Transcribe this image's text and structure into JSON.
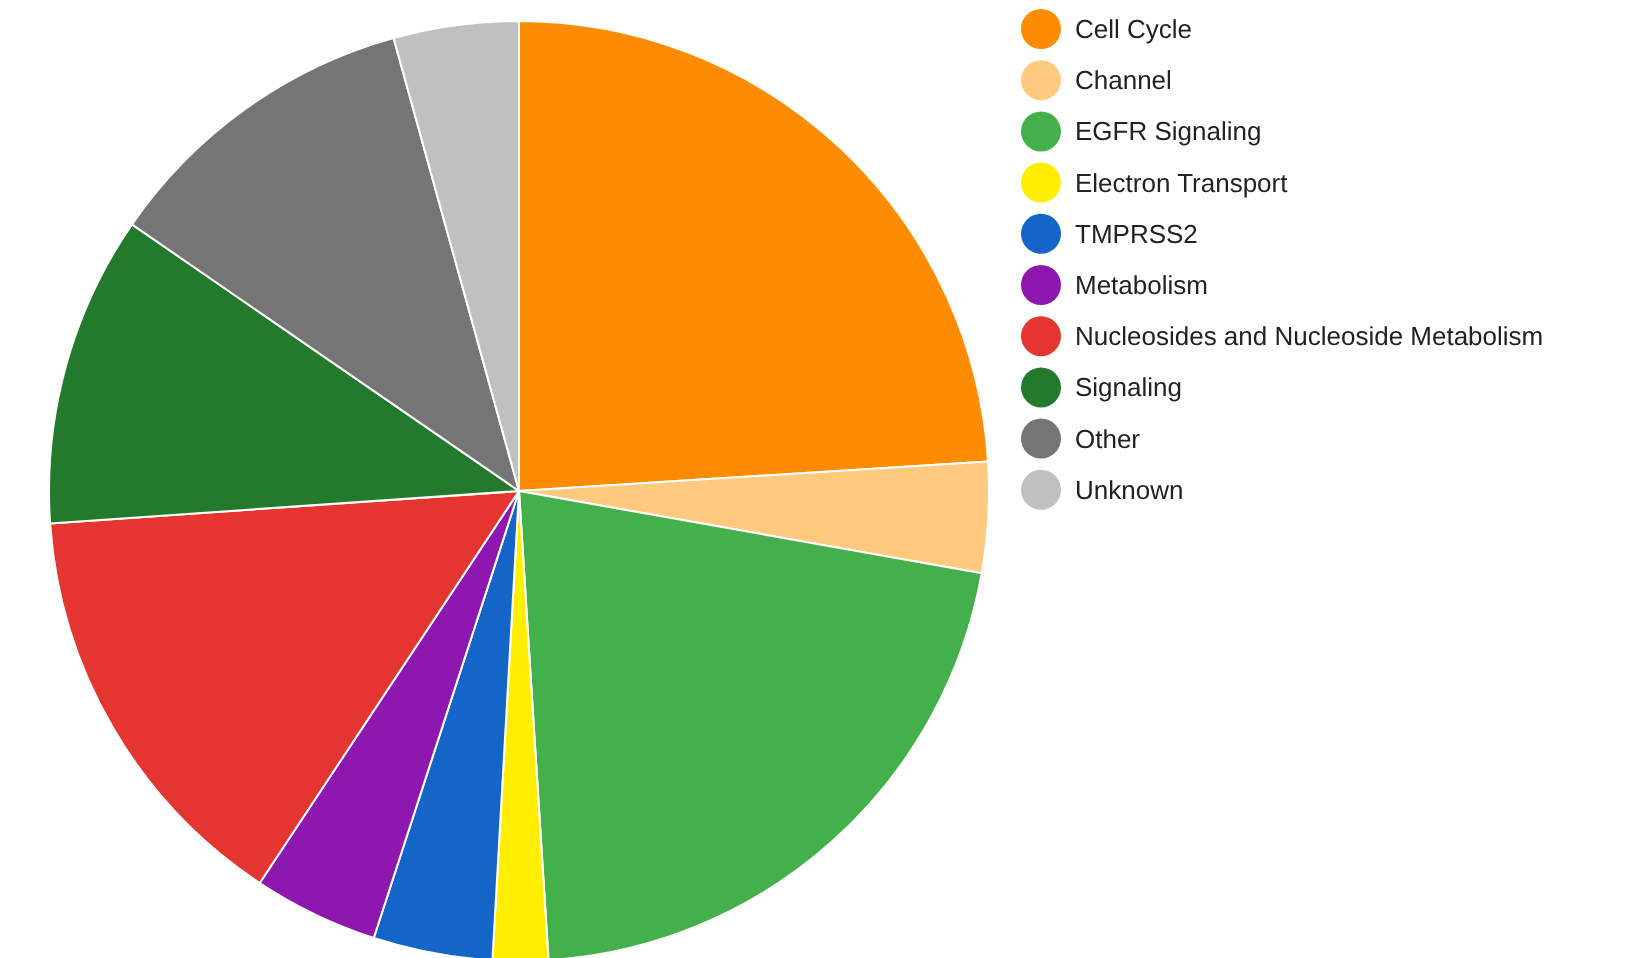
{
  "chart_data": {
    "type": "pie",
    "categories": [
      "Cell Cycle",
      "Channel",
      "EGFR Signaling",
      "Electron Transport",
      "TMPRSS2",
      "Metabolism",
      "Nucleosides and Nucleoside Metabolism",
      "Signaling",
      "Other",
      "Unknown"
    ],
    "values": [
      24,
      3.8,
      21.2,
      1.9,
      4.1,
      4.3,
      14.6,
      10.7,
      11.1,
      4.3
    ],
    "colors": [
      "#ff8c00",
      "#ffc97e",
      "#44b04c",
      "#ffee00",
      "#1565c8",
      "#8e17b0",
      "#e53530",
      "#237a2d",
      "#757575",
      "#c0c0c0"
    ],
    "legend": "right"
  }
}
